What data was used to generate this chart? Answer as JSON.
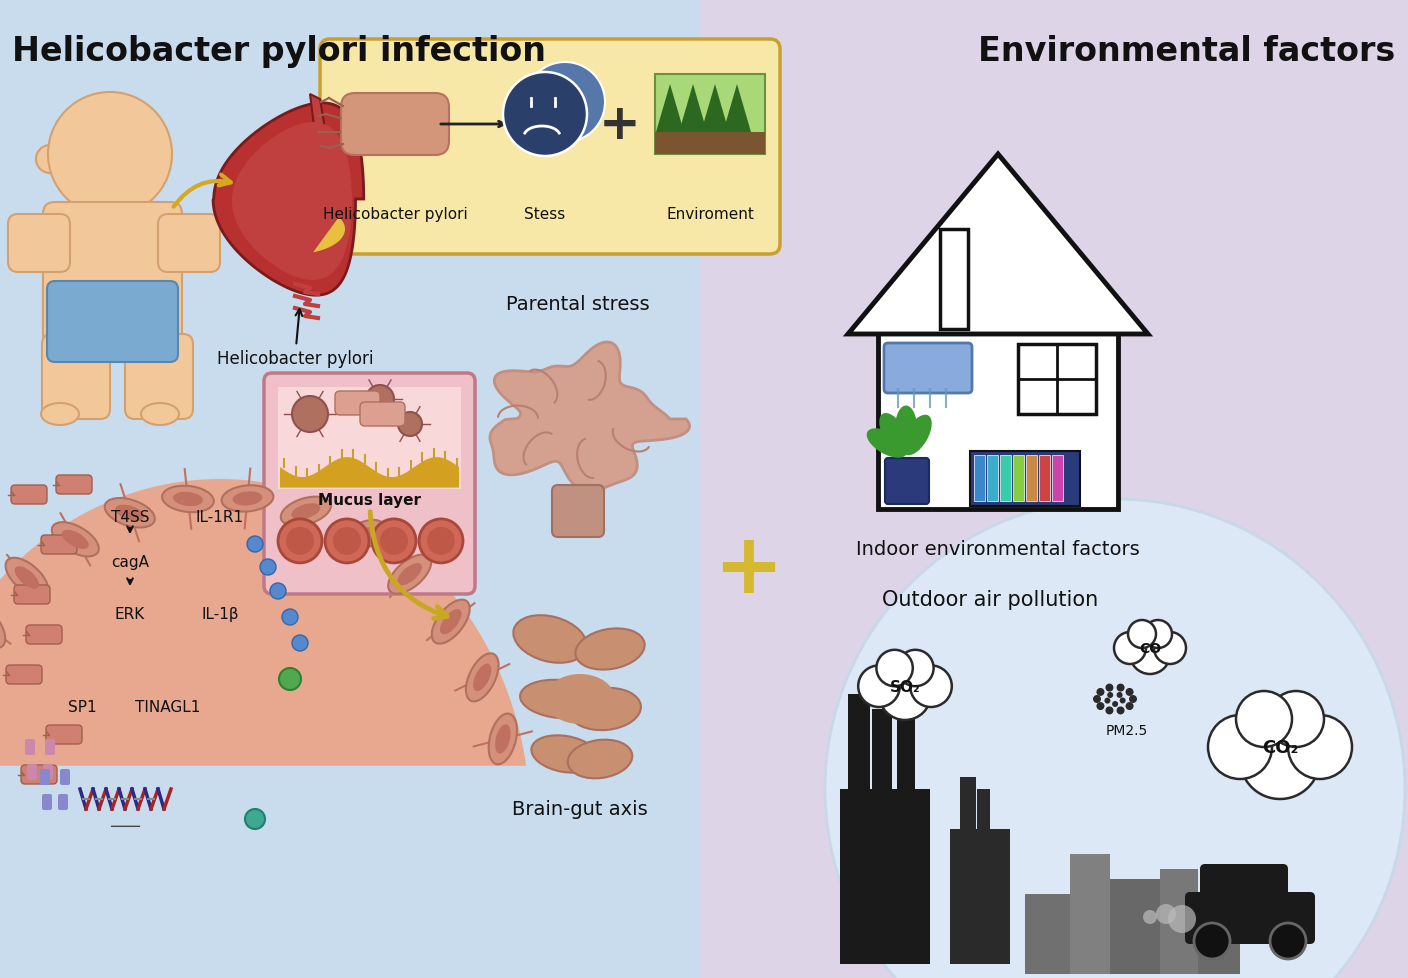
{
  "title_left": "Helicobacter pylori infection",
  "title_right": "Environmental factors",
  "bg_left_color": "#c8dced",
  "bg_right_color": "#ddd4e8",
  "bg_center_color": "#c8dced",
  "box_top_facecolor": "#f7e8a8",
  "box_top_edgecolor": "#c8a030",
  "labels": {
    "hp_box": "Helicobacter pylori",
    "stress_box": "Stess",
    "env_box": "Enviroment",
    "hp_arrow": "Helicobacter pylori",
    "mucus_layer": "Mucus layer",
    "parental_stress": "Parental stress",
    "brain_gut_axis": "Brain-gut axis",
    "indoor_env": "Indoor environmental factors",
    "outdoor_pollution": "Outdoor air pollution",
    "t4ss": "T4SS",
    "caga": "cagA",
    "erk": "ERK",
    "sp1": "SP1",
    "tinagl1": "TINAGL1",
    "il1r1": "IL-1R1",
    "il1b": "IL-1β"
  },
  "font_size_title": 24,
  "font_size_label": 14,
  "font_size_small": 11
}
